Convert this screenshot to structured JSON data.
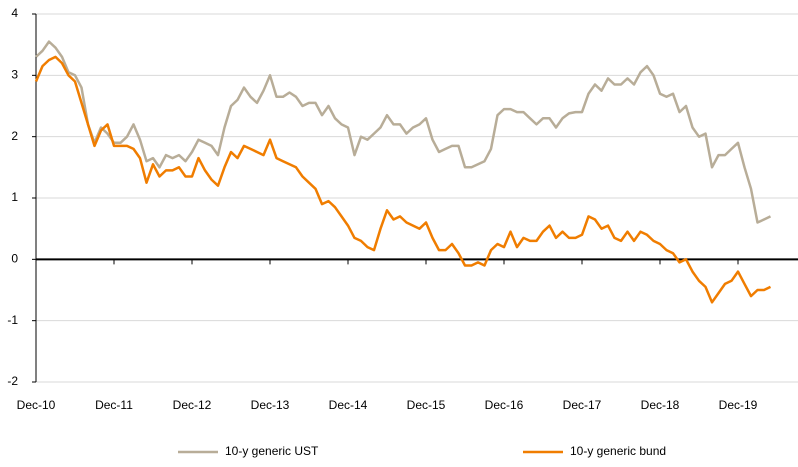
{
  "chart_data": {
    "type": "line",
    "categories": [
      "Dec-10",
      null,
      null,
      null,
      null,
      null,
      null,
      null,
      null,
      null,
      null,
      null,
      "Dec-11",
      null,
      null,
      null,
      null,
      null,
      null,
      null,
      null,
      null,
      null,
      null,
      "Dec-12",
      null,
      null,
      null,
      null,
      null,
      null,
      null,
      null,
      null,
      null,
      null,
      "Dec-13",
      null,
      null,
      null,
      null,
      null,
      null,
      null,
      null,
      null,
      null,
      null,
      "Dec-14",
      null,
      null,
      null,
      null,
      null,
      null,
      null,
      null,
      null,
      null,
      null,
      "Dec-15",
      null,
      null,
      null,
      null,
      null,
      null,
      null,
      null,
      null,
      null,
      null,
      "Dec-16",
      null,
      null,
      null,
      null,
      null,
      null,
      null,
      null,
      null,
      null,
      null,
      "Dec-17",
      null,
      null,
      null,
      null,
      null,
      null,
      null,
      null,
      null,
      null,
      null,
      "Dec-18",
      null,
      null,
      null,
      null,
      null,
      null,
      null,
      null,
      null,
      null,
      null,
      "Dec-19",
      null,
      null,
      null,
      null,
      null
    ],
    "series": [
      {
        "name": "10-y generic UST",
        "color": "#b8ad98",
        "values": [
          3.3,
          3.4,
          3.55,
          3.45,
          3.3,
          3.05,
          3.0,
          2.8,
          2.2,
          1.9,
          2.15,
          2.05,
          1.9,
          1.9,
          2.0,
          2.2,
          1.95,
          1.6,
          1.65,
          1.5,
          1.7,
          1.65,
          1.7,
          1.6,
          1.75,
          1.95,
          1.9,
          1.85,
          1.7,
          2.15,
          2.5,
          2.6,
          2.8,
          2.65,
          2.55,
          2.75,
          3.0,
          2.65,
          2.65,
          2.72,
          2.65,
          2.5,
          2.55,
          2.55,
          2.35,
          2.5,
          2.3,
          2.2,
          2.15,
          1.7,
          2.0,
          1.95,
          2.05,
          2.15,
          2.35,
          2.2,
          2.2,
          2.05,
          2.15,
          2.2,
          2.3,
          1.95,
          1.75,
          1.8,
          1.85,
          1.85,
          1.5,
          1.5,
          1.55,
          1.6,
          1.8,
          2.35,
          2.45,
          2.45,
          2.4,
          2.4,
          2.3,
          2.2,
          2.3,
          2.3,
          2.15,
          2.3,
          2.38,
          2.4,
          2.4,
          2.7,
          2.85,
          2.75,
          2.95,
          2.85,
          2.85,
          2.95,
          2.85,
          3.05,
          3.15,
          3.0,
          2.7,
          2.65,
          2.7,
          2.4,
          2.5,
          2.15,
          2.0,
          2.05,
          1.5,
          1.7,
          1.7,
          1.8,
          1.9,
          1.5,
          1.15,
          0.6,
          0.65,
          0.7
        ]
      },
      {
        "name": "10-y generic bund",
        "color": "#f07d00",
        "values": [
          2.9,
          3.15,
          3.25,
          3.3,
          3.2,
          3.0,
          2.9,
          2.55,
          2.2,
          1.85,
          2.1,
          2.2,
          1.85,
          1.85,
          1.85,
          1.8,
          1.65,
          1.25,
          1.55,
          1.35,
          1.45,
          1.45,
          1.5,
          1.35,
          1.35,
          1.65,
          1.45,
          1.3,
          1.2,
          1.5,
          1.75,
          1.65,
          1.85,
          1.8,
          1.75,
          1.7,
          1.95,
          1.65,
          1.6,
          1.55,
          1.5,
          1.35,
          1.25,
          1.15,
          0.9,
          0.95,
          0.85,
          0.7,
          0.55,
          0.35,
          0.3,
          0.2,
          0.15,
          0.5,
          0.8,
          0.65,
          0.7,
          0.6,
          0.55,
          0.5,
          0.6,
          0.35,
          0.15,
          0.15,
          0.25,
          0.1,
          -0.1,
          -0.1,
          -0.05,
          -0.1,
          0.15,
          0.25,
          0.2,
          0.45,
          0.2,
          0.35,
          0.3,
          0.3,
          0.45,
          0.55,
          0.35,
          0.45,
          0.35,
          0.35,
          0.4,
          0.7,
          0.65,
          0.5,
          0.55,
          0.35,
          0.3,
          0.45,
          0.3,
          0.45,
          0.4,
          0.3,
          0.25,
          0.15,
          0.1,
          -0.05,
          0.0,
          -0.2,
          -0.35,
          -0.45,
          -0.7,
          -0.55,
          -0.4,
          -0.35,
          -0.2,
          -0.4,
          -0.6,
          -0.5,
          -0.5,
          -0.45
        ]
      }
    ],
    "ylim": [
      -2,
      4
    ],
    "yticks": [
      -2,
      -1,
      0,
      1,
      2,
      3,
      4
    ],
    "grid": true
  }
}
